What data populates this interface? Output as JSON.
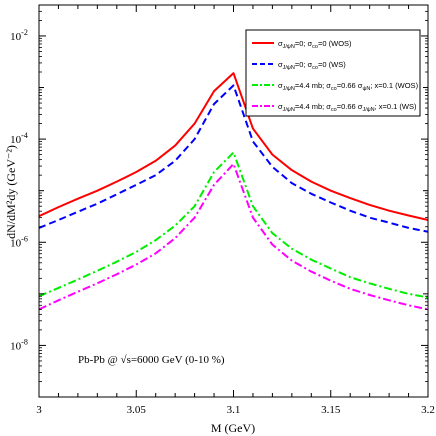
{
  "chart_data": {
    "type": "line",
    "xlabel": "M (GeV)",
    "ylabel": "dN/dM²dy (GeV⁻²)",
    "xlim": [
      3.0,
      3.2
    ],
    "ylim_log10": [
      -9,
      -1.4
    ],
    "log_y": true,
    "x_ticks": [
      "3",
      "3.05",
      "3.1",
      "3.15",
      "3.2"
    ],
    "y_ticks": [
      {
        "exp": -2,
        "label": "-2"
      },
      {
        "exp": -4,
        "label": "-4"
      },
      {
        "exp": -6,
        "label": "-6"
      },
      {
        "exp": -8,
        "label": "-8"
      }
    ],
    "annotation": "Pb-Pb @ √s=6000 GeV (0-10 %)",
    "legend_position": "top-right",
    "x": [
      3.0,
      3.01,
      3.02,
      3.03,
      3.04,
      3.05,
      3.06,
      3.07,
      3.08,
      3.09,
      3.1,
      3.11,
      3.12,
      3.13,
      3.14,
      3.15,
      3.16,
      3.17,
      3.18,
      3.19,
      3.2
    ],
    "series": [
      {
        "name": "σJ/ψN=0; σco=0 (WOS)",
        "legend_main": "σ",
        "legend_parts": [
          [
            "J/ψN",
            "=0; σ"
          ],
          [
            "co",
            "=0 (WOS)"
          ]
        ],
        "color": "#ff0000",
        "dash": "solid",
        "values": [
          3.2e-06,
          4.8e-06,
          7e-06,
          1e-05,
          1.5e-05,
          2.3e-05,
          3.8e-05,
          7.5e-05,
          0.0002,
          0.00085,
          0.0019,
          0.00016,
          5e-05,
          2.5e-05,
          1.5e-05,
          1e-05,
          7.2e-06,
          5.3e-06,
          4.1e-06,
          3.3e-06,
          2.7e-06
        ]
      },
      {
        "name": "σJ/ψN=0; σco=0 (WS)",
        "legend_main": "σ",
        "legend_parts": [
          [
            "J/ψN",
            "=0; σ"
          ],
          [
            "co",
            "=0 (WS)"
          ]
        ],
        "color": "#0000ff",
        "dash": "dashed",
        "values": [
          1.9e-06,
          2.7e-06,
          3.9e-06,
          5.6e-06,
          8.5e-06,
          1.3e-05,
          2e-05,
          3.8e-05,
          0.0001,
          0.00048,
          0.0011,
          9e-05,
          2.9e-05,
          1.4e-05,
          8.7e-06,
          5.9e-06,
          4.1e-06,
          3e-06,
          2.4e-06,
          1.9e-06,
          1.6e-06
        ]
      },
      {
        "name": "σJ/ψN=4.4 mb; σco=0.66 σψN; x=0.1 (WOS)",
        "legend_main": "σ",
        "legend_parts": [
          [
            "J/ψN",
            "=4.4 mb;  σ"
          ],
          [
            "co",
            "=0.66 σ"
          ],
          [
            "ψN",
            "; x=0.1 (WOS)"
          ]
        ],
        "color": "#00ee00",
        "dash": "dashdot",
        "values": [
          9e-08,
          1.3e-07,
          1.9e-07,
          2.8e-07,
          4.2e-07,
          6.5e-07,
          1.1e-06,
          2.1e-06,
          5e-06,
          2.3e-05,
          5.5e-05,
          5e-06,
          1.5e-06,
          7.5e-07,
          4.6e-07,
          3.1e-07,
          2.1e-07,
          1.6e-07,
          1.25e-07,
          1e-07,
          8.5e-08
        ]
      },
      {
        "name": "σJ/ψN=4.4 mb; σco=0.66 σJ/ψN; x=0.1 (WS)",
        "legend_main": "σ",
        "legend_parts": [
          [
            "J/ψN",
            "=4.4 mb; σ"
          ],
          [
            "co",
            "=0.66 σ"
          ],
          [
            "J/ψN",
            "; x=0.1 (WS)"
          ]
        ],
        "color": "#ff00ff",
        "dash": "dashdot",
        "values": [
          5e-08,
          7.5e-08,
          1.1e-07,
          1.6e-07,
          2.4e-07,
          3.7e-07,
          6.1e-07,
          1.2e-06,
          3e-06,
          1.3e-05,
          3.3e-05,
          3e-06,
          9e-07,
          4.4e-07,
          2.7e-07,
          1.8e-07,
          1.25e-07,
          9.5e-08,
          7.5e-08,
          6e-08,
          5e-08
        ]
      }
    ]
  }
}
